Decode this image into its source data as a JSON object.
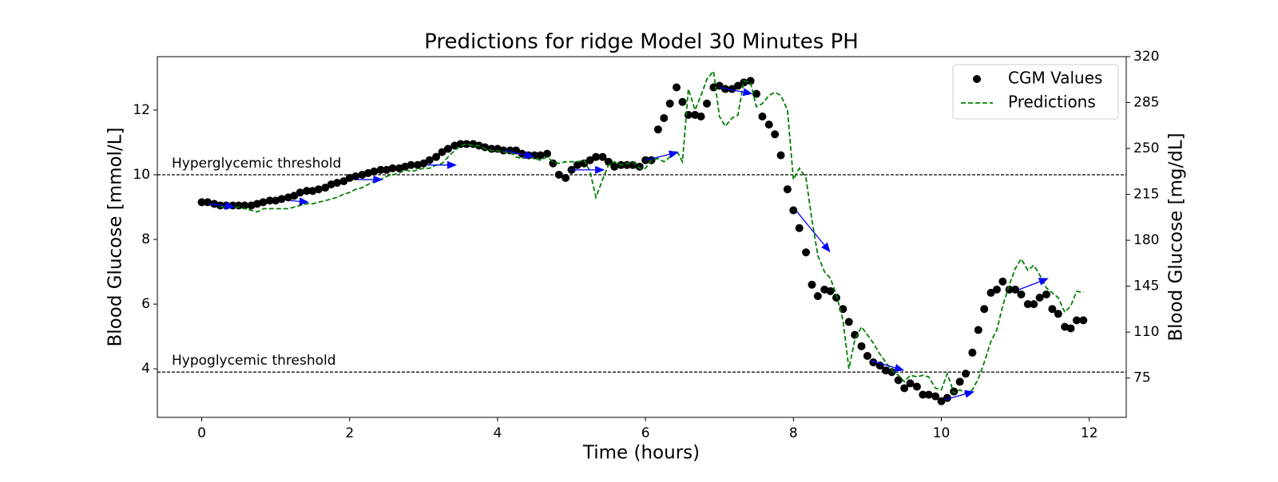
{
  "chart_data": {
    "type": "line",
    "title": "Predictions for ridge Model 30 Minutes PH",
    "xlabel": "Time (hours)",
    "ylabel": "Blood Glucose [mmol/L]",
    "y2label": "Blood Glucose [mg/dL]",
    "xlim": [
      -0.6,
      12.5
    ],
    "ylim": [
      2.5,
      13.65
    ],
    "y2lim": [
      45,
      320
    ],
    "xticks": [
      0,
      2,
      4,
      6,
      8,
      10,
      12
    ],
    "yticks": [
      4,
      6,
      8,
      10,
      12
    ],
    "y2ticks": [
      75,
      110,
      145,
      180,
      215,
      250,
      285,
      320
    ],
    "legend": "upper right",
    "x": [
      0,
      0.08,
      0.17,
      0.25,
      0.33,
      0.42,
      0.5,
      0.58,
      0.67,
      0.75,
      0.83,
      0.92,
      1,
      1.08,
      1.17,
      1.25,
      1.33,
      1.42,
      1.5,
      1.58,
      1.67,
      1.75,
      1.83,
      1.92,
      2,
      2.08,
      2.17,
      2.25,
      2.33,
      2.42,
      2.5,
      2.58,
      2.67,
      2.75,
      2.83,
      2.92,
      3,
      3.08,
      3.17,
      3.25,
      3.33,
      3.42,
      3.5,
      3.58,
      3.67,
      3.75,
      3.83,
      3.92,
      4,
      4.08,
      4.17,
      4.25,
      4.33,
      4.42,
      4.5,
      4.58,
      4.67,
      4.75,
      4.83,
      4.92,
      5,
      5.08,
      5.17,
      5.25,
      5.33,
      5.42,
      5.5,
      5.58,
      5.67,
      5.75,
      5.83,
      5.92,
      6,
      6.08,
      6.17,
      6.25,
      6.33,
      6.42,
      6.5,
      6.58,
      6.67,
      6.75,
      6.83,
      6.92,
      7,
      7.08,
      7.17,
      7.25,
      7.33,
      7.42,
      7.5,
      7.58,
      7.67,
      7.75,
      7.83,
      7.92,
      8,
      8.08,
      8.17,
      8.25,
      8.33,
      8.42,
      8.5,
      8.58,
      8.67,
      8.75,
      8.83,
      8.92,
      9,
      9.08,
      9.17,
      9.25,
      9.33,
      9.42,
      9.5,
      9.58,
      9.67,
      9.75,
      9.83,
      9.92,
      10,
      10.08,
      10.17,
      10.25,
      10.33,
      10.42,
      10.5,
      10.58,
      10.67,
      10.75,
      10.83,
      10.92,
      11,
      11.08,
      11.17,
      11.25,
      11.33,
      11.42,
      11.5,
      11.58,
      11.67,
      11.75,
      11.83,
      11.92
    ],
    "series": [
      {
        "name": "CGM Values",
        "color": "#000000",
        "marker": "o",
        "linestyle": "none",
        "values": [
          9.15,
          9.15,
          9.1,
          9.05,
          9.05,
          9.05,
          9.05,
          9.05,
          9.05,
          9.1,
          9.15,
          9.2,
          9.2,
          9.25,
          9.3,
          9.35,
          9.45,
          9.5,
          9.5,
          9.55,
          9.6,
          9.7,
          9.75,
          9.8,
          9.9,
          9.95,
          10.0,
          10.05,
          10.1,
          10.15,
          10.15,
          10.2,
          10.2,
          10.25,
          10.3,
          10.3,
          10.35,
          10.45,
          10.55,
          10.7,
          10.8,
          10.9,
          10.95,
          10.95,
          10.95,
          10.9,
          10.85,
          10.8,
          10.8,
          10.75,
          10.75,
          10.75,
          10.65,
          10.6,
          10.6,
          10.6,
          10.65,
          10.35,
          10.0,
          9.9,
          10.15,
          10.3,
          10.35,
          10.45,
          10.55,
          10.55,
          10.4,
          10.25,
          10.3,
          10.3,
          10.3,
          10.25,
          10.45,
          10.45,
          11.4,
          11.75,
          12.2,
          12.7,
          12.25,
          11.85,
          11.85,
          11.8,
          12.2,
          12.7,
          12.75,
          12.65,
          12.65,
          12.75,
          12.85,
          12.9,
          12.5,
          11.8,
          11.55,
          11.25,
          10.6,
          9.55,
          8.9,
          8.35,
          7.6,
          6.6,
          6.25,
          6.45,
          6.4,
          6.2,
          5.85,
          5.45,
          5.05,
          4.7,
          4.4,
          4.2,
          4.1,
          3.95,
          3.9,
          3.65,
          3.4,
          3.55,
          3.45,
          3.2,
          3.2,
          3.15,
          3.0,
          3.1,
          3.3,
          3.6,
          3.85,
          4.5,
          5.2,
          5.85,
          6.35,
          6.45,
          6.7,
          6.45,
          6.45,
          6.3,
          6.0,
          6.0,
          6.2,
          6.3,
          5.85,
          5.7,
          5.3,
          5.25,
          5.5,
          5.5
        ]
      },
      {
        "name": "Predictions",
        "color": "#008000",
        "marker": "none",
        "linestyle": "dashed",
        "values": [
          null,
          null,
          null,
          9.0,
          9.0,
          9.0,
          9.0,
          8.95,
          8.9,
          8.85,
          8.95,
          8.95,
          8.95,
          8.95,
          8.95,
          9.0,
          9.05,
          9.1,
          9.1,
          9.15,
          9.2,
          9.25,
          9.3,
          9.4,
          9.45,
          9.55,
          9.6,
          9.7,
          9.8,
          9.85,
          9.95,
          10.0,
          10.05,
          10.15,
          10.1,
          10.15,
          10.2,
          10.2,
          10.3,
          10.35,
          10.55,
          10.75,
          10.9,
          10.95,
          10.9,
          10.9,
          10.8,
          10.75,
          10.75,
          10.7,
          10.7,
          10.55,
          10.5,
          10.55,
          10.5,
          10.45,
          10.55,
          10.4,
          10.35,
          10.4,
          10.4,
          10.4,
          10.45,
          10.1,
          9.3,
          9.85,
          10.3,
          10.4,
          10.3,
          10.35,
          10.4,
          10.2,
          10.2,
          10.45,
          10.5,
          10.4,
          10.55,
          10.75,
          10.4,
          12.65,
          12.0,
          12.45,
          12.95,
          13.2,
          11.8,
          11.5,
          11.75,
          11.85,
          12.9,
          12.85,
          12.1,
          12.2,
          12.45,
          12.55,
          12.45,
          12.0,
          9.85,
          10.2,
          9.9,
          8.6,
          7.5,
          7.0,
          6.8,
          6.3,
          5.5,
          4.0,
          4.9,
          5.3,
          5.05,
          4.8,
          4.45,
          4.2,
          3.95,
          3.8,
          3.6,
          3.8,
          3.75,
          3.8,
          3.75,
          3.4,
          3.35,
          3.85,
          3.25,
          3.35,
          3.25,
          3.35,
          3.7,
          4.2,
          4.85,
          5.2,
          5.95,
          6.6,
          7.1,
          7.4,
          7.05,
          7.2,
          6.9,
          6.5,
          6.35,
          6.2,
          5.75,
          5.95,
          6.4,
          6.35
        ]
      }
    ],
    "arrows": {
      "color": "#0000ff",
      "items": [
        {
          "x": [
            0.1,
            0.45
          ],
          "y": [
            9.1,
            9.0
          ]
        },
        {
          "x": [
            1.2,
            1.45
          ],
          "y": [
            9.2,
            9.15
          ]
        },
        {
          "x": [
            2.1,
            2.45
          ],
          "y": [
            9.85,
            9.85
          ]
        },
        {
          "x": [
            3.05,
            3.45
          ],
          "y": [
            10.3,
            10.3
          ]
        },
        {
          "x": [
            4.1,
            4.5
          ],
          "y": [
            10.75,
            10.55
          ]
        },
        {
          "x": [
            5.0,
            5.45
          ],
          "y": [
            10.15,
            10.15
          ]
        },
        {
          "x": [
            6.0,
            6.45
          ],
          "y": [
            10.45,
            10.7
          ]
        },
        {
          "x": [
            7.0,
            7.45
          ],
          "y": [
            12.7,
            12.5
          ]
        },
        {
          "x": [
            8.05,
            8.5
          ],
          "y": [
            8.85,
            7.6
          ]
        },
        {
          "x": [
            9.05,
            9.5
          ],
          "y": [
            4.25,
            3.95
          ]
        },
        {
          "x": [
            10.05,
            10.45
          ],
          "y": [
            3.05,
            3.3
          ]
        },
        {
          "x": [
            11.05,
            11.45
          ],
          "y": [
            6.45,
            6.8
          ]
        }
      ]
    },
    "hlines": [
      {
        "value": 10,
        "label": "Hyperglycemic threshold"
      },
      {
        "value": 3.9,
        "label": "Hypoglycemic threshold"
      }
    ]
  }
}
